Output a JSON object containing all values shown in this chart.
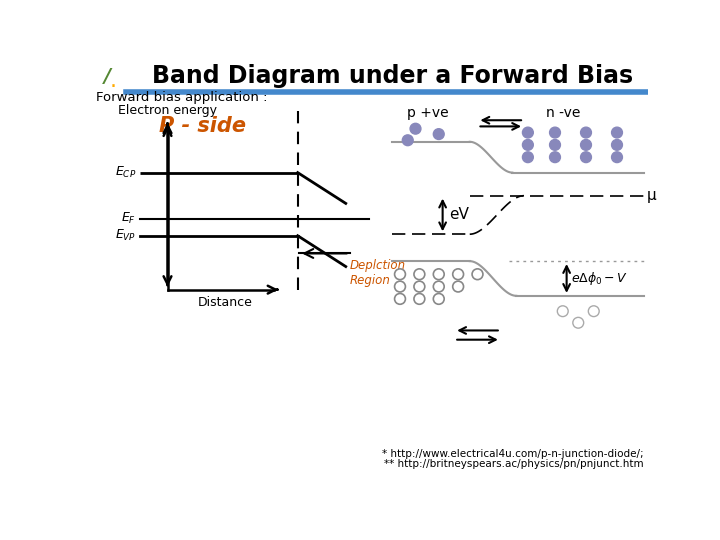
{
  "title": "Band Diagram under a Forward Bias",
  "subtitle": "Forward bias application :",
  "bg_color": "#ffffff",
  "title_color": "#000000",
  "p_side_label": "P - side",
  "p_side_color": "#cc5500",
  "p_plus_label": "p +ve",
  "n_minus_label": "n -ve",
  "eV_label": "eV",
  "mu_label": "μ",
  "eV_barrier_label": "eΔφ₀−V",
  "electron_energy_label": "Electron energy",
  "distance_label": "Distance",
  "depletion_label": "Deplction\nRegion",
  "depletion_color": "#cc5500",
  "ref_url1": "* http://www.electrical4u.com/p-n-junction-diode/;",
  "ref_url2": "** http://britneyspears.ac/physics/pn/pnjunct.htm",
  "dot_fill_color": "#8888bb",
  "line_gray": "#999999",
  "header_blue": "#4488cc"
}
